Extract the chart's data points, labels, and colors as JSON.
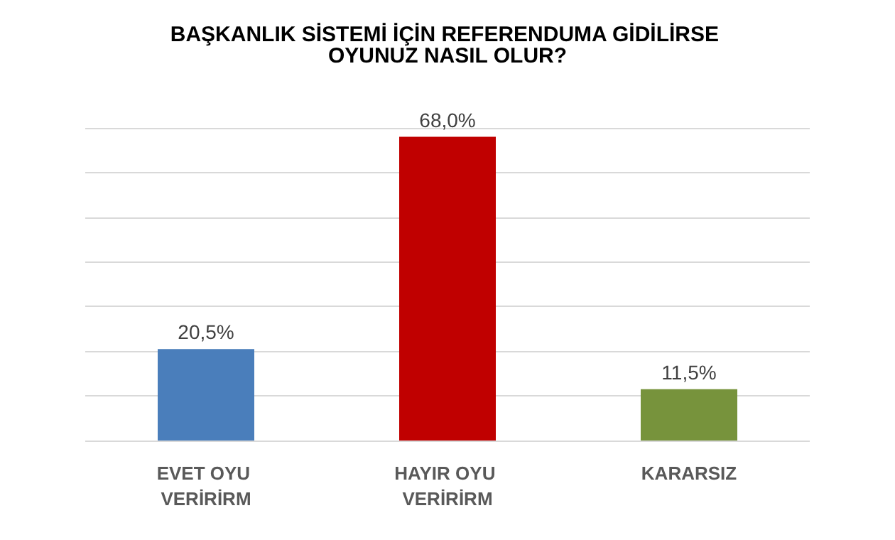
{
  "chart_data": {
    "type": "bar",
    "title": "BAŞKANLIK SİSTEMİ İÇİN REFERENDUMA GİDİLİRSE OYUNUZ NASIL OLUR?",
    "categories": [
      "EVET OYU VERİRİRM",
      "HAYIR OYU VERİRİRM",
      "KARARSIZ"
    ],
    "values": [
      20.5,
      68.0,
      11.5
    ],
    "colors": [
      "#4a7ebb",
      "#c00000",
      "#77933c"
    ],
    "value_labels": [
      "20,5%",
      "68,0%",
      "11,5%"
    ],
    "grid": "y",
    "tick_labels": "x"
  }
}
